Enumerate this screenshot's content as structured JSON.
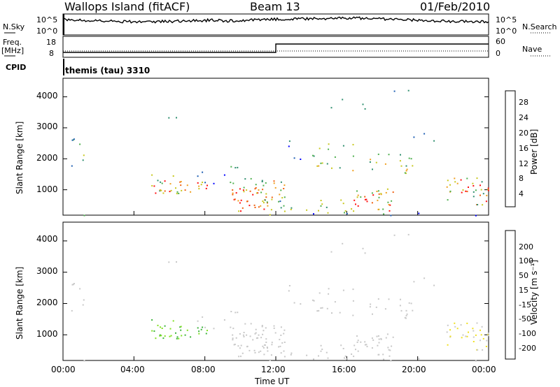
{
  "header": {
    "station": "Wallops Island (fitACF)",
    "beam": "Beam 13",
    "date": "01/Feb/2010"
  },
  "summary_panels": {
    "nsky_label": "N.Sky",
    "nsky_ticks": [
      "10^5",
      "10^0"
    ],
    "nsearch_label": "N.Search",
    "nsearch_ticks": [
      "10^5",
      "10^0"
    ],
    "freq_label": "Freq.",
    "freq_unit": "[MHz]",
    "freq_ticks": [
      "18",
      "8"
    ],
    "nave_label": "Nave",
    "nave_ticks": [
      "60",
      "0"
    ],
    "cpid_label": "CPID",
    "cpid_value": "themis (tau) 3310"
  },
  "colors": {
    "power_scale": [
      "#0000ff",
      "#1f5fb3",
      "#2f8f6f",
      "#4fb04f",
      "#c8c81e",
      "#f0a020",
      "#f06010",
      "#ff1010"
    ],
    "velocity_scale": [
      "#2030b0",
      "#2a7a4a",
      "#3cb43c",
      "#80e020",
      "#c8c8c8",
      "#f0e020",
      "#f0a010",
      "#f06010",
      "#ff0000"
    ]
  },
  "chart_data": [
    {
      "type": "heatmap",
      "panel": "power",
      "ylabel": "Slant Range [km]",
      "ylim": [
        180,
        4600
      ],
      "yticks": [
        "4000",
        "3000",
        "2000",
        "1000"
      ],
      "xlim": [
        "00:00",
        "24:00"
      ],
      "xticks": [
        "00:00",
        "04:00",
        "08:00",
        "12:00",
        "16:00",
        "20:00",
        "00:00"
      ],
      "colorbar_label": "Power [dB]",
      "colorbar_ticks": [
        "28",
        "24",
        "20",
        "16",
        "12",
        "8",
        "4"
      ],
      "colorbar_range": [
        0,
        32
      ]
    },
    {
      "type": "heatmap",
      "panel": "velocity",
      "ylabel": "Slant Range [km]",
      "ylim": [
        180,
        4600
      ],
      "yticks": [
        "4000",
        "3000",
        "2000",
        "1000"
      ],
      "xlim": [
        "00:00",
        "24:00"
      ],
      "xticks": [
        "00:00",
        "04:00",
        "08:00",
        "12:00",
        "16:00",
        "20:00",
        "00:00"
      ],
      "xlabel": "Time UT",
      "colorbar_label": "Velocity [m s⁻¹]",
      "colorbar_ticks": [
        "200",
        "100",
        "50",
        "15",
        "-15",
        "-50",
        "-100",
        "-200"
      ],
      "colorbar_range": [
        -250,
        250
      ]
    }
  ]
}
